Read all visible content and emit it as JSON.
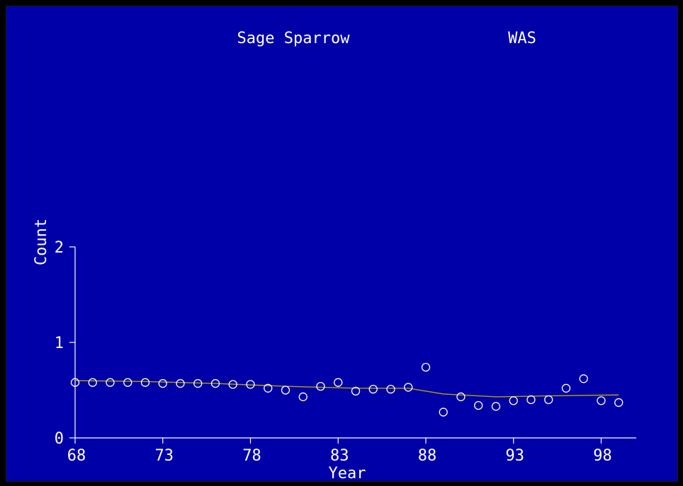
{
  "colors": {
    "background": "#0000a8",
    "frame": "#000000",
    "axis": "#ffffff",
    "points": "#ffffff",
    "trend": "#b8a000"
  },
  "chart_data": {
    "type": "scatter",
    "title": "Sage Sparrow",
    "subtitle": "WAS",
    "xlabel": "Year",
    "ylabel": "Count",
    "xlim": [
      68,
      100
    ],
    "ylim": [
      0,
      2
    ],
    "x_ticks": [
      68,
      73,
      78,
      83,
      88,
      93,
      98
    ],
    "x_tick_labels": [
      "68",
      "73",
      "78",
      "83",
      "88",
      "93",
      "98"
    ],
    "y_ticks": [
      0,
      1,
      2
    ],
    "y_tick_labels": [
      "0",
      "1",
      "2"
    ],
    "grid": false,
    "series": [
      {
        "type": "scatter",
        "x": [
          68,
          69,
          70,
          71,
          72,
          73,
          74,
          75,
          76,
          77,
          78,
          79,
          80,
          81,
          82,
          83,
          84,
          85,
          86,
          87,
          88,
          89,
          90,
          91,
          92,
          93,
          94,
          95,
          96,
          97,
          98,
          99
        ],
        "y": [
          0.58,
          0.58,
          0.58,
          0.58,
          0.58,
          0.57,
          0.57,
          0.57,
          0.57,
          0.56,
          0.56,
          0.52,
          0.5,
          0.43,
          0.54,
          0.58,
          0.49,
          0.51,
          0.51,
          0.53,
          0.74,
          0.27,
          0.43,
          0.34,
          0.33,
          0.39,
          0.4,
          0.4,
          0.52,
          0.62,
          0.39,
          0.37
        ]
      },
      {
        "type": "line",
        "x": [
          68,
          72,
          76,
          80,
          84,
          87,
          89,
          92,
          95,
          99
        ],
        "y": [
          0.6,
          0.59,
          0.57,
          0.54,
          0.52,
          0.52,
          0.46,
          0.43,
          0.44,
          0.45
        ]
      }
    ]
  }
}
